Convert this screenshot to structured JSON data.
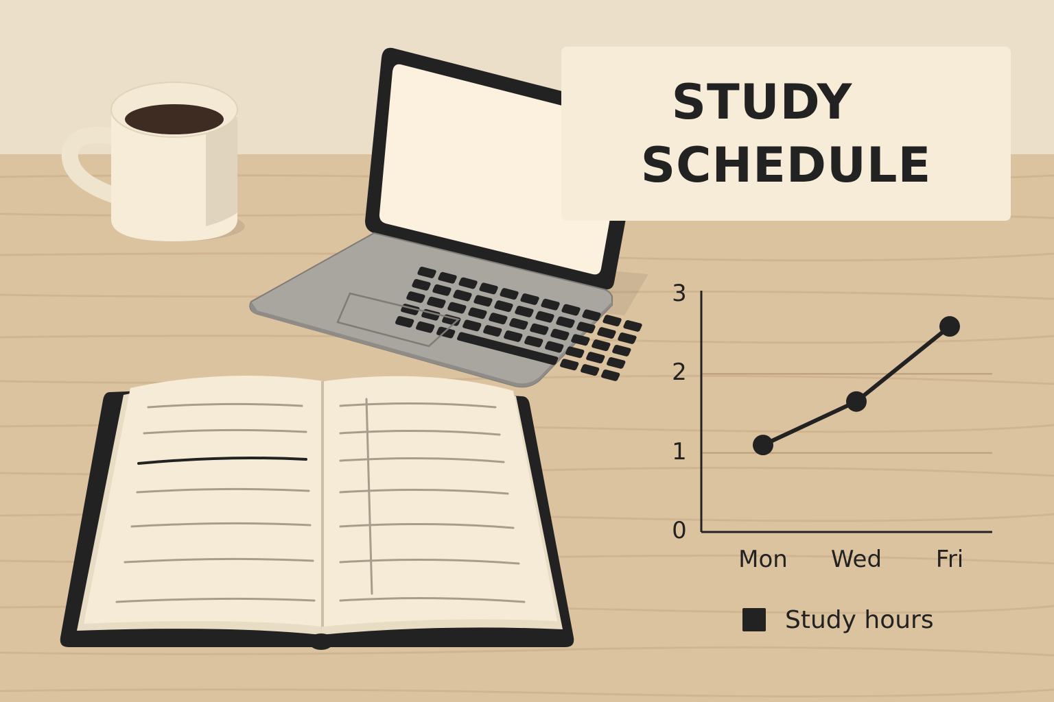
{
  "title": {
    "line1": "STUDY",
    "line2": "SCHEDULE"
  },
  "colors": {
    "wall": "#ebdfc9",
    "desk": "#dcc3a0",
    "desk_grain": "#c9ab84",
    "card": "#f6ecd7",
    "ink": "#222222",
    "paper": "#f5ebd6",
    "laptop_body": "#a9a6a0",
    "coffee": "#3e2c22",
    "grid": "#b89d78"
  },
  "chart_data": {
    "type": "line",
    "categories": [
      "Mon",
      "Wed",
      "Fri"
    ],
    "series": [
      {
        "name": "Study hours",
        "values": [
          1.1,
          1.65,
          2.6
        ]
      }
    ],
    "yticks": [
      "0",
      "1",
      "2",
      "3"
    ],
    "ylim": [
      0,
      3
    ],
    "grid": true,
    "legend": "bottom"
  },
  "icons": [
    "coffee-mug-icon",
    "laptop-icon",
    "notebook-icon"
  ]
}
